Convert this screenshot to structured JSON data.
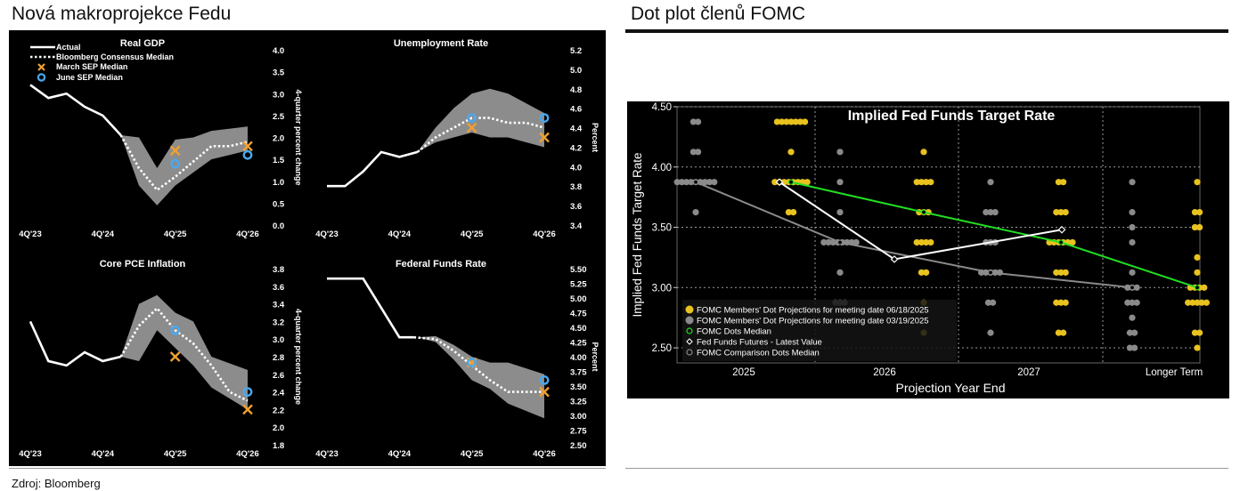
{
  "left_title": "Nová makroprojekce Fedu",
  "right_title": "Dot plot členů FOMC",
  "source": "Zdroj: Bloomberg",
  "colors": {
    "actual": "#ffffff",
    "consensus": "#ffffff",
    "band": "#8c8c8c",
    "march": "#f0a030",
    "june": "#4aa8ee",
    "dot_jun": "#e8c21e",
    "dot_mar": "#8a8a8a",
    "median": "#22dd22",
    "futures": "#ffffff",
    "comparison": "#8a8a8a"
  },
  "legend": {
    "actual": "Actual",
    "consensus": "Bloomberg Consensus Median",
    "march": "March SEP Median",
    "june": "June SEP Median"
  },
  "chart_data": [
    {
      "type": "line",
      "title": "Real GDP",
      "ylabel": "4-quarter percent change",
      "ylim": [
        0.0,
        4.0
      ],
      "yticks": [
        "4.0",
        "3.5",
        "3.0",
        "2.5",
        "2.0",
        "1.5",
        "1.0",
        "0.5",
        "0.0"
      ],
      "xticks": [
        "4Q'23",
        "4Q'24",
        "4Q'25",
        "4Q'26"
      ],
      "actual": {
        "x": [
          2023.75,
          2024.0,
          2024.25,
          2024.5,
          2024.75,
          2025.0
        ],
        "y": [
          3.2,
          2.9,
          3.0,
          2.7,
          2.5,
          2.05
        ]
      },
      "consensus": {
        "x": [
          2025.0,
          2025.25,
          2025.5,
          2025.75,
          2026.0,
          2026.25,
          2026.5,
          2026.75
        ],
        "y": [
          2.05,
          1.3,
          0.8,
          1.1,
          1.45,
          1.8,
          1.8,
          1.9
        ]
      },
      "band_upper": [
        2.05,
        2.0,
        1.3,
        1.95,
        2.0,
        2.15,
        2.25
      ],
      "band_lower": [
        2.05,
        0.9,
        0.45,
        0.9,
        1.2,
        1.5,
        1.7
      ],
      "band_x": [
        2025.0,
        2025.25,
        2025.5,
        2025.75,
        2026.0,
        2026.25,
        2026.75
      ],
      "march_sep": [
        {
          "x": 2025.75,
          "y": 1.7
        },
        {
          "x": 2026.75,
          "y": 1.8
        }
      ],
      "june_sep": [
        {
          "x": 2025.75,
          "y": 1.4
        },
        {
          "x": 2026.75,
          "y": 1.6
        }
      ]
    },
    {
      "type": "line",
      "title": "Unemployment Rate",
      "ylabel": "Percent",
      "ylim": [
        3.4,
        5.2
      ],
      "yticks": [
        "5.2",
        "5.0",
        "4.8",
        "4.6",
        "4.4",
        "4.2",
        "4.0",
        "3.8",
        "3.6",
        "3.4"
      ],
      "xticks": [
        "4Q'23",
        "4Q'24",
        "4Q'25",
        "4Q'26"
      ],
      "actual": {
        "x": [
          2023.75,
          2024.0,
          2024.25,
          2024.5,
          2024.75,
          2025.0
        ],
        "y": [
          3.8,
          3.8,
          3.95,
          4.15,
          4.1,
          4.15
        ]
      },
      "consensus": {
        "x": [
          2025.0,
          2025.25,
          2025.5,
          2025.75,
          2026.0,
          2026.25,
          2026.5,
          2026.75
        ],
        "y": [
          4.15,
          4.3,
          4.4,
          4.5,
          4.5,
          4.45,
          4.45,
          4.4
        ]
      },
      "band_upper": [
        4.15,
        4.4,
        4.6,
        4.75,
        4.8,
        4.75,
        4.55
      ],
      "band_lower": [
        4.15,
        4.25,
        4.3,
        4.35,
        4.3,
        4.3,
        4.2
      ],
      "band_x": [
        2025.0,
        2025.25,
        2025.5,
        2025.75,
        2026.0,
        2026.25,
        2026.75
      ],
      "march_sep": [
        {
          "x": 2025.75,
          "y": 4.4
        },
        {
          "x": 2026.75,
          "y": 4.3
        }
      ],
      "june_sep": [
        {
          "x": 2025.75,
          "y": 4.5
        },
        {
          "x": 2026.75,
          "y": 4.5
        }
      ]
    },
    {
      "type": "line",
      "title": "Core PCE Inflation",
      "ylabel": "4-quarter percent change",
      "ylim": [
        1.8,
        3.8
      ],
      "yticks": [
        "3.8",
        "3.6",
        "3.4",
        "3.2",
        "3.0",
        "2.8",
        "2.6",
        "2.4",
        "2.2",
        "2.0",
        "1.8"
      ],
      "xticks": [
        "4Q'23",
        "4Q'24",
        "4Q'25",
        "4Q'26"
      ],
      "actual": {
        "x": [
          2023.75,
          2024.0,
          2024.25,
          2024.5,
          2024.75,
          2025.0
        ],
        "y": [
          3.2,
          2.75,
          2.7,
          2.85,
          2.75,
          2.8
        ]
      },
      "consensus": {
        "x": [
          2025.0,
          2025.25,
          2025.5,
          2025.75,
          2026.0,
          2026.25,
          2026.5,
          2026.75
        ],
        "y": [
          2.8,
          3.15,
          3.35,
          3.1,
          2.95,
          2.7,
          2.4,
          2.3
        ]
      },
      "band_upper": [
        2.8,
        3.4,
        3.5,
        3.3,
        3.2,
        2.8,
        2.65
      ],
      "band_lower": [
        2.8,
        2.75,
        3.1,
        2.9,
        2.7,
        2.45,
        2.2
      ],
      "band_x": [
        2025.0,
        2025.25,
        2025.5,
        2025.75,
        2026.0,
        2026.25,
        2026.75
      ],
      "march_sep": [
        {
          "x": 2025.75,
          "y": 2.8
        },
        {
          "x": 2026.75,
          "y": 2.2
        }
      ],
      "june_sep": [
        {
          "x": 2025.75,
          "y": 3.1
        },
        {
          "x": 2026.75,
          "y": 2.4
        }
      ]
    },
    {
      "type": "line",
      "title": "Federal Funds Rate",
      "ylabel": "Percent",
      "ylim": [
        2.5,
        5.5
      ],
      "yticks": [
        "5.50",
        "5.25",
        "5.00",
        "4.75",
        "4.50",
        "4.25",
        "4.00",
        "3.75",
        "3.50",
        "3.25",
        "3.00",
        "2.75",
        "2.50"
      ],
      "xticks": [
        "4Q'23",
        "4Q'24",
        "4Q'25",
        "4Q'26"
      ],
      "actual": {
        "x": [
          2023.75,
          2024.25,
          2024.5,
          2024.75,
          2024.95
        ],
        "y": [
          5.33,
          5.33,
          4.83,
          4.33,
          4.33
        ]
      },
      "consensus": {
        "x": [
          2024.95,
          2025.25,
          2025.5,
          2025.75,
          2026.0,
          2026.25,
          2026.5,
          2026.75
        ],
        "y": [
          4.33,
          4.3,
          4.1,
          3.85,
          3.6,
          3.4,
          3.4,
          3.4
        ]
      },
      "band_upper": [
        4.33,
        4.35,
        4.2,
        4.0,
        3.9,
        3.9,
        3.7
      ],
      "band_lower": [
        4.33,
        4.25,
        3.95,
        3.6,
        3.45,
        3.2,
        2.95
      ],
      "band_x": [
        2025.0,
        2025.25,
        2025.5,
        2025.75,
        2026.0,
        2026.25,
        2026.75
      ],
      "march_sep": [
        {
          "x": 2025.75,
          "y": 3.9
        },
        {
          "x": 2026.75,
          "y": 3.4
        }
      ],
      "june_sep": [
        {
          "x": 2025.75,
          "y": 3.9
        },
        {
          "x": 2026.75,
          "y": 3.6
        }
      ]
    },
    {
      "type": "scatter",
      "title": "Implied Fed Funds Target Rate",
      "xlabel": "Projection Year End",
      "ylabel": "Implied Fed Funds Target Rate",
      "ylim": [
        2.375,
        4.5
      ],
      "yticks": [
        "4.50",
        "4.00",
        "3.50",
        "3.00",
        "2.50"
      ],
      "categories": [
        "2025",
        "2026",
        "2027",
        "Longer Term"
      ],
      "legend": [
        "FOMC Members' Dot Projections for meeting date 06/18/2025",
        "FOMC Members' Dot Projections for meeting date 03/19/2025",
        "FOMC Dots Median",
        "Fed Funds Futures - Latest Value",
        "FOMC Comparison Dots Median"
      ],
      "dots_0618": [
        {
          "cat": 0,
          "rate": 4.375,
          "n": 7
        },
        {
          "cat": 0,
          "rate": 4.125,
          "n": 1
        },
        {
          "cat": 0,
          "rate": 3.875,
          "n": 8
        },
        {
          "cat": 0,
          "rate": 3.625,
          "n": 2
        },
        {
          "cat": 1,
          "rate": 4.125,
          "n": 1
        },
        {
          "cat": 1,
          "rate": 3.875,
          "n": 4
        },
        {
          "cat": 1,
          "rate": 3.625,
          "n": 3
        },
        {
          "cat": 1,
          "rate": 3.375,
          "n": 4
        },
        {
          "cat": 1,
          "rate": 3.125,
          "n": 2
        },
        {
          "cat": 1,
          "rate": 2.875,
          "n": 1
        },
        {
          "cat": 1,
          "rate": 2.625,
          "n": 1
        },
        {
          "cat": 2,
          "rate": 3.875,
          "n": 2
        },
        {
          "cat": 2,
          "rate": 3.625,
          "n": 3
        },
        {
          "cat": 2,
          "rate": 3.375,
          "n": 6
        },
        {
          "cat": 2,
          "rate": 3.125,
          "n": 3
        },
        {
          "cat": 2,
          "rate": 2.875,
          "n": 3
        },
        {
          "cat": 2,
          "rate": 2.625,
          "n": 2
        },
        {
          "cat": 3,
          "rate": 3.875,
          "n": 1
        },
        {
          "cat": 3,
          "rate": 3.625,
          "n": 2
        },
        {
          "cat": 3,
          "rate": 3.5,
          "n": 2
        },
        {
          "cat": 3,
          "rate": 3.25,
          "n": 1
        },
        {
          "cat": 3,
          "rate": 3.125,
          "n": 1
        },
        {
          "cat": 3,
          "rate": 3.0,
          "n": 4
        },
        {
          "cat": 3,
          "rate": 2.875,
          "n": 5
        },
        {
          "cat": 3,
          "rate": 2.625,
          "n": 2
        },
        {
          "cat": 3,
          "rate": 2.5,
          "n": 1
        }
      ],
      "dots_0319": [
        {
          "cat": 0,
          "rate": 4.375,
          "n": 2
        },
        {
          "cat": 0,
          "rate": 4.125,
          "n": 2
        },
        {
          "cat": 0,
          "rate": 3.875,
          "n": 9
        },
        {
          "cat": 0,
          "rate": 3.625,
          "n": 1
        },
        {
          "cat": 1,
          "rate": 4.125,
          "n": 1
        },
        {
          "cat": 1,
          "rate": 3.875,
          "n": 1
        },
        {
          "cat": 1,
          "rate": 3.625,
          "n": 1
        },
        {
          "cat": 1,
          "rate": 3.375,
          "n": 8
        },
        {
          "cat": 1,
          "rate": 3.125,
          "n": 1
        },
        {
          "cat": 1,
          "rate": 2.875,
          "n": 3
        },
        {
          "cat": 2,
          "rate": 3.875,
          "n": 1
        },
        {
          "cat": 2,
          "rate": 3.625,
          "n": 3
        },
        {
          "cat": 2,
          "rate": 3.375,
          "n": 3
        },
        {
          "cat": 2,
          "rate": 3.125,
          "n": 5
        },
        {
          "cat": 2,
          "rate": 2.875,
          "n": 2
        },
        {
          "cat": 2,
          "rate": 2.625,
          "n": 1
        },
        {
          "cat": 3,
          "rate": 3.875,
          "n": 1
        },
        {
          "cat": 3,
          "rate": 3.625,
          "n": 1
        },
        {
          "cat": 3,
          "rate": 3.5,
          "n": 1
        },
        {
          "cat": 3,
          "rate": 3.375,
          "n": 1
        },
        {
          "cat": 3,
          "rate": 3.125,
          "n": 1
        },
        {
          "cat": 3,
          "rate": 3.0,
          "n": 3
        },
        {
          "cat": 3,
          "rate": 2.875,
          "n": 3
        },
        {
          "cat": 3,
          "rate": 2.75,
          "n": 1
        },
        {
          "cat": 3,
          "rate": 2.625,
          "n": 2
        },
        {
          "cat": 3,
          "rate": 2.5,
          "n": 2
        }
      ],
      "median_0618": [
        3.875,
        3.625,
        3.375,
        3.0
      ],
      "median_0319": [
        3.875,
        3.375,
        3.125,
        3.0
      ],
      "futures": [
        3.875,
        3.235,
        3.48
      ]
    }
  ]
}
